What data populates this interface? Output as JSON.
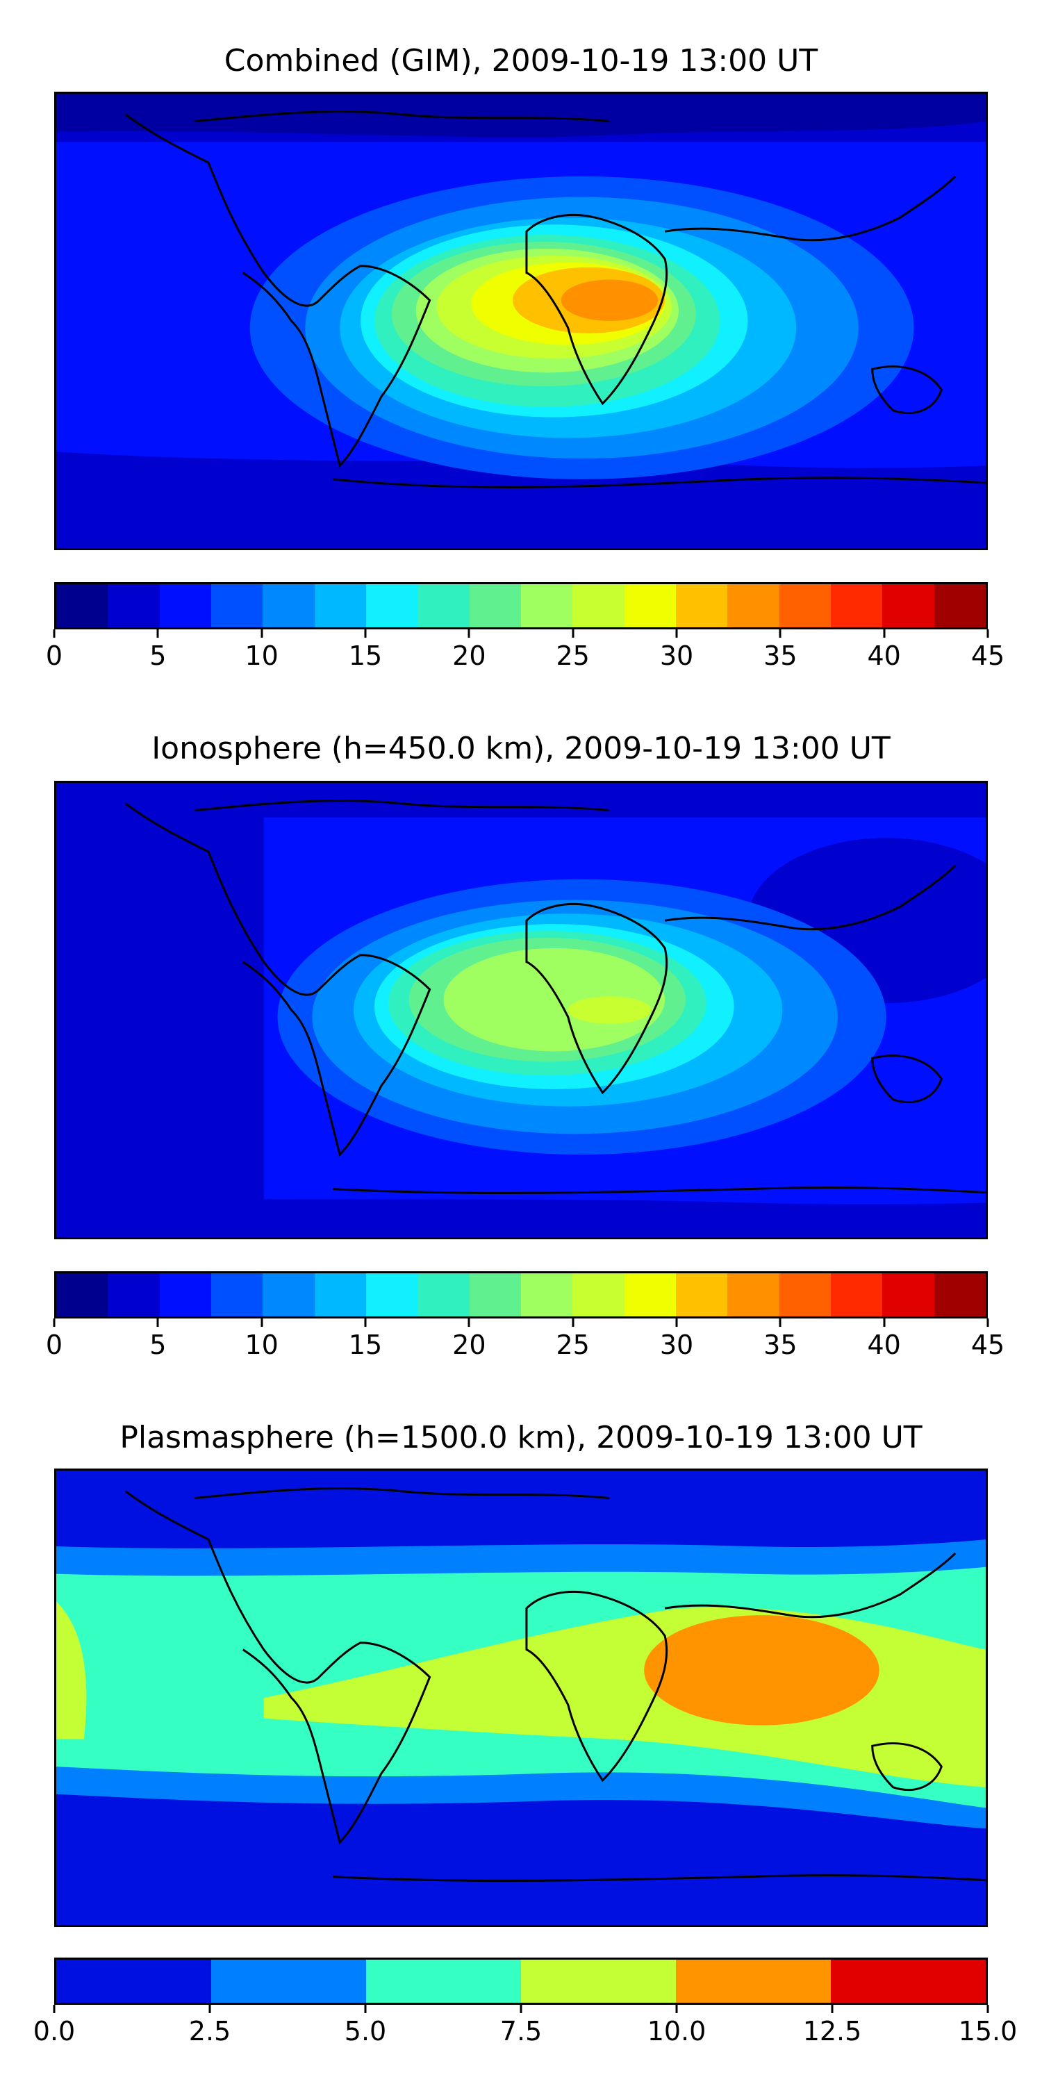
{
  "panels": [
    {
      "title": "Combined (GIM), 2009-10-19 13:00 UT",
      "colorbar": {
        "colors": [
          "#00008f",
          "#0000cf",
          "#0010ff",
          "#0050ff",
          "#0088ff",
          "#00b8ff",
          "#10f0ff",
          "#30f0c0",
          "#60f090",
          "#a0ff60",
          "#c8ff30",
          "#f0ff00",
          "#ffc000",
          "#ff9000",
          "#ff6000",
          "#ff2a00",
          "#e00000",
          "#a00000"
        ],
        "ticks": [
          "0",
          "5",
          "10",
          "15",
          "20",
          "25",
          "30",
          "35",
          "40",
          "45"
        ]
      }
    },
    {
      "title": "Ionosphere  (h=450.0 km), 2009-10-19 13:00 UT",
      "colorbar": {
        "colors": [
          "#00008f",
          "#0000cf",
          "#0010ff",
          "#0050ff",
          "#0088ff",
          "#00b8ff",
          "#10f0ff",
          "#30f0c0",
          "#60f090",
          "#a0ff60",
          "#c8ff30",
          "#f0ff00",
          "#ffc000",
          "#ff9000",
          "#ff6000",
          "#ff2a00",
          "#e00000",
          "#a00000"
        ],
        "ticks": [
          "0",
          "5",
          "10",
          "15",
          "20",
          "25",
          "30",
          "35",
          "40",
          "45"
        ]
      }
    },
    {
      "title": "Plasmasphere (h=1500.0 km), 2009-10-19 13:00 UT",
      "colorbar": {
        "colors": [
          "#0010e0",
          "#0080ff",
          "#36ffc4",
          "#c4ff36",
          "#ff9400",
          "#e00000"
        ],
        "ticks": [
          "0.0",
          "2.5",
          "5.0",
          "7.5",
          "10.0",
          "12.5",
          "15.0"
        ]
      }
    }
  ]
}
